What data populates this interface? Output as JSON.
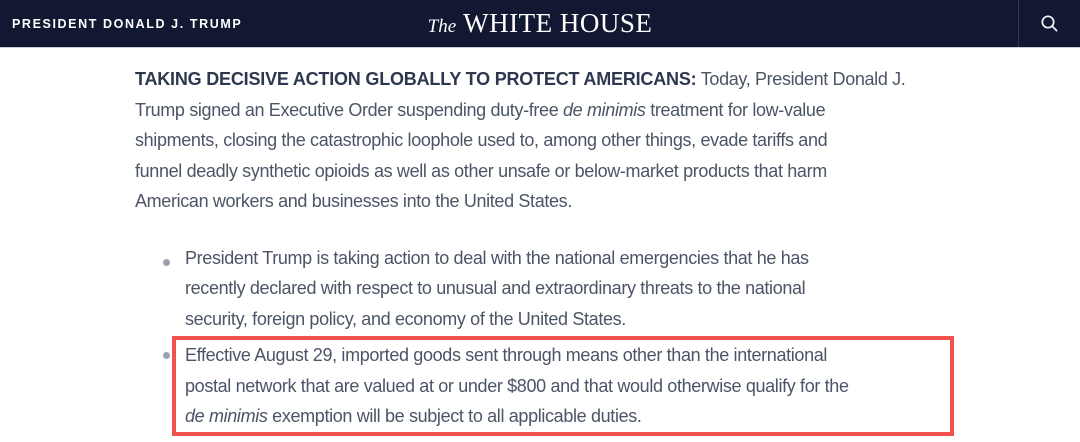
{
  "header": {
    "bg_color": "#121831",
    "eyebrow": "PRESIDENT DONALD J. TRUMP",
    "logo": {
      "the": "The",
      "title": "WHITE HOUSE"
    },
    "search_icon": "magnifying-glass"
  },
  "article": {
    "colors": {
      "heading_text": "#2d374d",
      "body_text": "#4b5566",
      "highlight_border": "#f1524d",
      "bullet_marker": "#9aa1ad"
    },
    "paragraph_lines": [
      {
        "runs": [
          {
            "style": "bold",
            "text": "TAKING DECISIVE ACTION GLOBALLY TO PROTECT AMERICANS:"
          },
          {
            "style": "regular",
            "text": " Today, President Donald J."
          }
        ]
      },
      {
        "runs": [
          {
            "style": "regular",
            "text": "Trump signed an Executive Order suspending duty-free "
          },
          {
            "style": "italic",
            "text": "de minimis"
          },
          {
            "style": "regular",
            "text": " treatment for low-value"
          }
        ]
      },
      {
        "runs": [
          {
            "style": "regular",
            "text": "shipments, closing the catastrophic loophole used to, among other things, evade tariffs and"
          }
        ]
      },
      {
        "runs": [
          {
            "style": "regular",
            "text": "funnel deadly synthetic opioids as well as other unsafe or below-market products that harm"
          }
        ]
      },
      {
        "runs": [
          {
            "style": "regular",
            "text": "American workers and businesses into the United States."
          }
        ]
      }
    ],
    "bullets": [
      {
        "highlighted": false,
        "lines": [
          {
            "runs": [
              {
                "style": "regular",
                "text": "President Trump is taking action to deal with the national emergencies that he has"
              }
            ]
          },
          {
            "runs": [
              {
                "style": "regular",
                "text": "recently declared with respect to unusual and extraordinary threats to the national"
              }
            ]
          },
          {
            "runs": [
              {
                "style": "regular",
                "text": "security, foreign policy, and economy of the United States."
              }
            ]
          }
        ]
      },
      {
        "highlighted": true,
        "lines": [
          {
            "runs": [
              {
                "style": "regular",
                "text": "Effective August 29, imported goods sent through means other than the international"
              }
            ]
          },
          {
            "runs": [
              {
                "style": "regular",
                "text": "postal network that are valued at or under $800 and that would otherwise qualify for the"
              }
            ]
          },
          {
            "runs": [
              {
                "style": "italic",
                "text": "de minimis"
              },
              {
                "style": "regular",
                "text": " exemption will be subject to all applicable duties."
              }
            ]
          }
        ]
      }
    ]
  }
}
